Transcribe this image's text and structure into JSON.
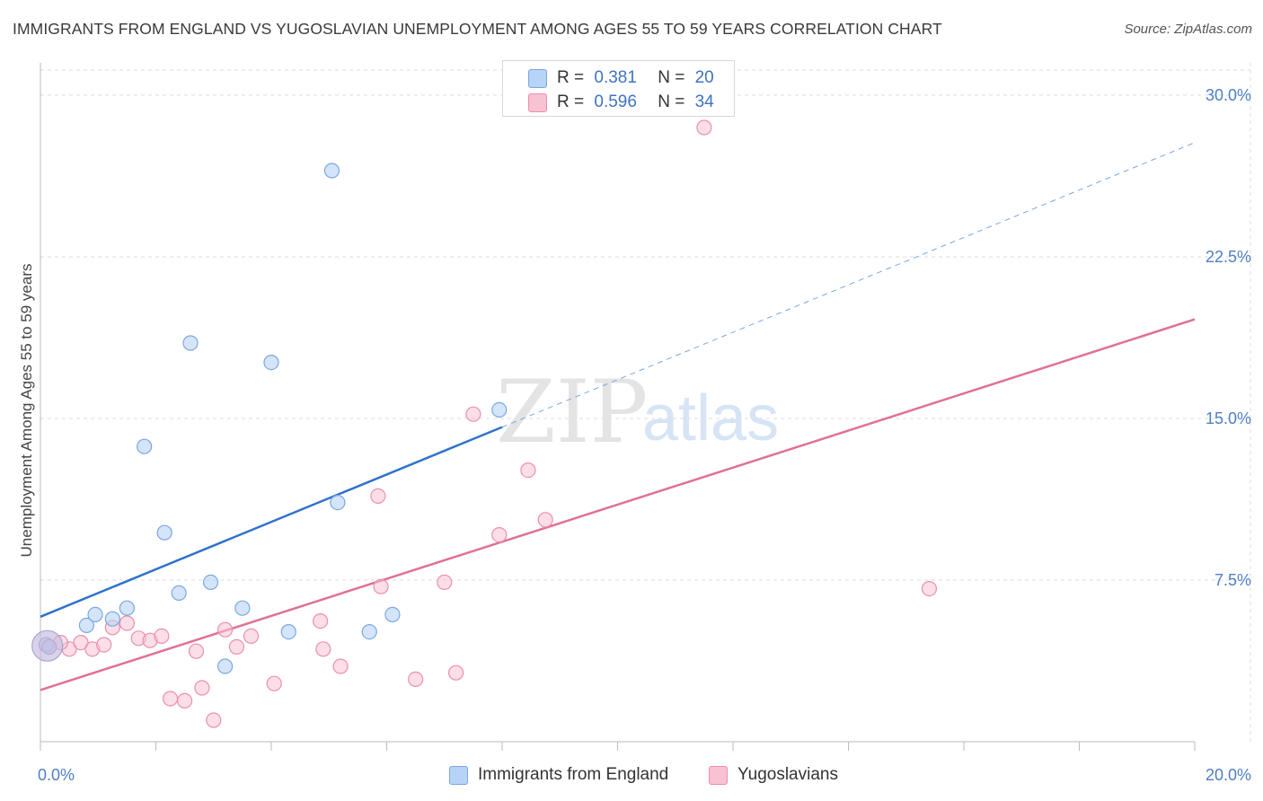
{
  "title": "IMMIGRANTS FROM ENGLAND VS YUGOSLAVIAN UNEMPLOYMENT AMONG AGES 55 TO 59 YEARS CORRELATION CHART",
  "source": "Source: ZipAtlas.com",
  "watermark": {
    "zip": "ZIP",
    "atlas": "atlas"
  },
  "legend": {
    "rows": [
      {
        "r_label": "R =",
        "r_value": "0.381",
        "n_label": "N =",
        "n_value": "20"
      },
      {
        "r_label": "R =",
        "r_value": "0.596",
        "n_label": "N =",
        "n_value": "34"
      }
    ]
  },
  "colors": {
    "england_fill": "#b7d3f5",
    "england_stroke": "#7aa7e0",
    "england_line": "#2f72cc",
    "yugo_fill": "#f8c2d3",
    "yugo_stroke": "#ec8fae",
    "yugo_line": "#e07099",
    "grid": "#dcdcdc",
    "tick_text": "#4f7fc4"
  },
  "chart_data": {
    "type": "scatter",
    "title": "IMMIGRANTS FROM ENGLAND VS YUGOSLAVIAN UNEMPLOYMENT AMONG AGES 55 TO 59 YEARS CORRELATION CHART",
    "xlabel": "",
    "ylabel": "Unemployment Among Ages 55 to 59 years",
    "xlim": [
      0,
      20
    ],
    "ylim": [
      0,
      31.5
    ],
    "x_tick_labels": [
      "0.0%",
      "20.0%"
    ],
    "y_ticks": [
      7.5,
      15.0,
      22.5,
      30.0
    ],
    "y_tick_labels": [
      "7.5%",
      "15.0%",
      "22.5%",
      "30.0%"
    ],
    "grid": true,
    "legend_placement": "bottom",
    "series": [
      {
        "name": "Immigrants from England",
        "r": 0.381,
        "n": 20,
        "points": [
          [
            0.1,
            4.5
          ],
          [
            0.8,
            5.4
          ],
          [
            0.95,
            5.9
          ],
          [
            1.25,
            5.7
          ],
          [
            1.5,
            6.2
          ],
          [
            1.8,
            13.7
          ],
          [
            2.15,
            9.7
          ],
          [
            2.4,
            6.9
          ],
          [
            2.6,
            18.5
          ],
          [
            2.95,
            7.4
          ],
          [
            3.2,
            3.5
          ],
          [
            3.5,
            6.2
          ],
          [
            4.0,
            17.6
          ],
          [
            4.3,
            5.1
          ],
          [
            5.05,
            26.5
          ],
          [
            5.15,
            11.1
          ],
          [
            5.7,
            5.1
          ],
          [
            6.1,
            5.9
          ],
          [
            7.95,
            15.4
          ],
          [
            0.15,
            4.4
          ]
        ],
        "trend": {
          "x0": 0,
          "y0": 5.8,
          "x1": 8.0,
          "y1": 14.6,
          "dashed_x1": 20,
          "dashed_y1": 27.8
        }
      },
      {
        "name": "Yugoslavians",
        "r": 0.596,
        "n": 34,
        "points": [
          [
            0.15,
            4.4
          ],
          [
            0.5,
            4.3
          ],
          [
            0.7,
            4.6
          ],
          [
            0.9,
            4.3
          ],
          [
            1.1,
            4.5
          ],
          [
            1.25,
            5.3
          ],
          [
            1.5,
            5.5
          ],
          [
            1.7,
            4.8
          ],
          [
            1.9,
            4.7
          ],
          [
            2.1,
            4.9
          ],
          [
            2.25,
            2.0
          ],
          [
            2.5,
            1.9
          ],
          [
            2.7,
            4.2
          ],
          [
            2.8,
            2.5
          ],
          [
            3.0,
            1.0
          ],
          [
            3.2,
            5.2
          ],
          [
            3.4,
            4.4
          ],
          [
            3.65,
            4.9
          ],
          [
            4.05,
            2.7
          ],
          [
            4.85,
            5.6
          ],
          [
            4.9,
            4.3
          ],
          [
            5.2,
            3.5
          ],
          [
            5.85,
            11.4
          ],
          [
            5.9,
            7.2
          ],
          [
            6.5,
            2.9
          ],
          [
            7.0,
            7.4
          ],
          [
            7.2,
            3.2
          ],
          [
            7.5,
            15.2
          ],
          [
            7.95,
            9.6
          ],
          [
            8.45,
            12.6
          ],
          [
            8.75,
            10.3
          ],
          [
            15.4,
            7.1
          ],
          [
            11.5,
            28.5
          ],
          [
            0.35,
            4.6
          ]
        ],
        "trend": {
          "x0": 0,
          "y0": 2.4,
          "x1": 20,
          "y1": 19.6
        }
      }
    ]
  }
}
